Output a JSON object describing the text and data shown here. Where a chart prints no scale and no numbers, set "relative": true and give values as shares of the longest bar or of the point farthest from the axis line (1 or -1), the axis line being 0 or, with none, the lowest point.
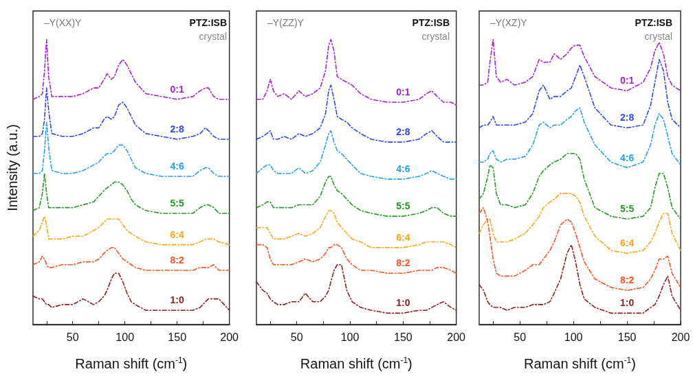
{
  "chart_data": [
    {
      "type": "line",
      "relative": true,
      "xlabel": "Raman shift (cm$^{-1}$)",
      "ylabel": "Intensity (a.u.)",
      "annotations": [
        "–Y(XX)Y",
        "PTZ:ISB",
        "crystal"
      ],
      "xlim": [
        12,
        200
      ],
      "xticks": [
        {
          "value": 25,
          "label": null
        },
        50,
        {
          "value": 75,
          "label": null
        },
        100,
        {
          "value": 125,
          "label": null
        },
        150,
        {
          "value": 175,
          "label": null
        },
        200
      ],
      "tick_labels": "x",
      "grid": false,
      "legend": false,
      "marker": "none",
      "line_style": "dashed",
      "x": [
        12,
        18,
        21,
        23,
        25,
        27,
        30,
        40,
        50,
        60,
        70,
        75,
        80,
        83,
        87,
        90,
        94,
        98,
        102,
        106,
        110,
        120,
        135,
        150,
        165,
        172,
        177,
        180,
        185,
        190,
        200
      ],
      "series": [
        {
          "name": "0:1",
          "color": "#a51fd8",
          "values": [
            0.79,
            0.8,
            0.81,
            0.89,
            1.0,
            0.87,
            0.8,
            0.8,
            0.8,
            0.81,
            0.83,
            0.83,
            0.86,
            0.88,
            0.86,
            0.87,
            0.91,
            0.93,
            0.91,
            0.88,
            0.85,
            0.81,
            0.8,
            0.79,
            0.8,
            0.82,
            0.83,
            0.83,
            0.8,
            0.79,
            0.79
          ]
        },
        {
          "name": "2:8",
          "color": "#2b45f0",
          "values": [
            0.66,
            0.66,
            0.67,
            0.72,
            0.83,
            0.75,
            0.67,
            0.66,
            0.66,
            0.67,
            0.69,
            0.69,
            0.72,
            0.73,
            0.72,
            0.73,
            0.77,
            0.78,
            0.76,
            0.73,
            0.7,
            0.67,
            0.66,
            0.65,
            0.66,
            0.67,
            0.69,
            0.68,
            0.66,
            0.65,
            0.65
          ]
        },
        {
          "name": "4:6",
          "color": "#1e9ff2",
          "values": [
            0.53,
            0.53,
            0.54,
            0.61,
            0.71,
            0.62,
            0.54,
            0.53,
            0.53,
            0.54,
            0.56,
            0.57,
            0.59,
            0.6,
            0.6,
            0.61,
            0.63,
            0.63,
            0.61,
            0.58,
            0.55,
            0.53,
            0.52,
            0.52,
            0.52,
            0.54,
            0.55,
            0.55,
            0.53,
            0.52,
            0.52
          ]
        },
        {
          "name": "5:5",
          "color": "#1f9a1f",
          "values": [
            0.4,
            0.41,
            0.46,
            0.53,
            0.46,
            0.41,
            0.41,
            0.41,
            0.41,
            0.42,
            0.43,
            0.45,
            0.47,
            0.48,
            0.49,
            0.5,
            0.5,
            0.49,
            0.47,
            0.44,
            0.42,
            0.4,
            0.39,
            0.39,
            0.39,
            0.41,
            0.42,
            0.42,
            0.41,
            0.39,
            0.39
          ]
        },
        {
          "name": "6:4",
          "color": "#ffa214",
          "values": [
            0.31,
            0.33,
            0.36,
            0.38,
            0.35,
            0.3,
            0.3,
            0.3,
            0.31,
            0.31,
            0.33,
            0.34,
            0.36,
            0.37,
            0.37,
            0.37,
            0.37,
            0.35,
            0.33,
            0.32,
            0.31,
            0.29,
            0.28,
            0.28,
            0.28,
            0.29,
            0.3,
            0.3,
            0.3,
            0.29,
            0.28
          ]
        },
        {
          "name": "8:2",
          "color": "#ff4f1e",
          "values": [
            0.21,
            0.22,
            0.24,
            0.23,
            0.21,
            0.2,
            0.2,
            0.21,
            0.21,
            0.22,
            0.22,
            0.23,
            0.25,
            0.26,
            0.27,
            0.27,
            0.25,
            0.23,
            0.22,
            0.21,
            0.2,
            0.19,
            0.19,
            0.19,
            0.19,
            0.2,
            0.2,
            0.2,
            0.21,
            0.19,
            0.19
          ]
        },
        {
          "name": "1:0",
          "color": "#8b1c1c",
          "values": [
            0.1,
            0.09,
            0.09,
            0.08,
            0.07,
            0.07,
            0.06,
            0.07,
            0.07,
            0.09,
            0.07,
            0.08,
            0.1,
            0.12,
            0.16,
            0.18,
            0.18,
            0.15,
            0.11,
            0.08,
            0.07,
            0.05,
            0.05,
            0.05,
            0.05,
            0.06,
            0.08,
            0.09,
            0.09,
            0.09,
            0.05
          ]
        }
      ]
    },
    {
      "type": "line",
      "relative": true,
      "xlabel": "Raman shift (cm$^{-1}$)",
      "annotations": [
        "–Y(ZZ)Y",
        "PTZ:ISB",
        "crystal"
      ],
      "xlim": [
        12,
        200
      ],
      "xticks": [
        {
          "value": 25,
          "label": null
        },
        50,
        {
          "value": 75,
          "label": null
        },
        100,
        {
          "value": 125,
          "label": null
        },
        150,
        {
          "value": 175,
          "label": null
        },
        200
      ],
      "tick_labels": "x",
      "grid": false,
      "legend": false,
      "marker": "none",
      "line_style": "dashed",
      "x": [
        12,
        18,
        22,
        25,
        28,
        32,
        38,
        45,
        52,
        58,
        65,
        72,
        77,
        80,
        82,
        85,
        88,
        92,
        97,
        102,
        110,
        120,
        135,
        150,
        165,
        172,
        177,
        182,
        188,
        195,
        200
      ],
      "series": [
        {
          "name": "0:1",
          "color": "#a51fd8",
          "values": [
            0.79,
            0.79,
            0.82,
            0.86,
            0.82,
            0.8,
            0.81,
            0.79,
            0.82,
            0.8,
            0.81,
            0.83,
            0.89,
            0.98,
            1.0,
            0.96,
            0.87,
            0.86,
            0.85,
            0.84,
            0.81,
            0.79,
            0.78,
            0.78,
            0.79,
            0.81,
            0.82,
            0.8,
            0.78,
            0.78,
            0.77
          ]
        },
        {
          "name": "2:8",
          "color": "#2b45f0",
          "values": [
            0.65,
            0.66,
            0.67,
            0.68,
            0.65,
            0.65,
            0.66,
            0.65,
            0.67,
            0.66,
            0.67,
            0.69,
            0.74,
            0.82,
            0.84,
            0.79,
            0.73,
            0.72,
            0.71,
            0.69,
            0.67,
            0.65,
            0.64,
            0.64,
            0.65,
            0.67,
            0.68,
            0.66,
            0.64,
            0.64,
            0.64
          ]
        },
        {
          "name": "4:6",
          "color": "#1e9ff2",
          "values": [
            0.53,
            0.55,
            0.56,
            0.56,
            0.54,
            0.53,
            0.53,
            0.53,
            0.55,
            0.53,
            0.54,
            0.57,
            0.63,
            0.67,
            0.68,
            0.64,
            0.61,
            0.6,
            0.58,
            0.56,
            0.53,
            0.52,
            0.51,
            0.51,
            0.52,
            0.53,
            0.54,
            0.53,
            0.52,
            0.51,
            0.51
          ]
        },
        {
          "name": "5:5",
          "color": "#1f9a1f",
          "values": [
            0.41,
            0.42,
            0.43,
            0.43,
            0.41,
            0.41,
            0.41,
            0.41,
            0.42,
            0.42,
            0.42,
            0.45,
            0.5,
            0.52,
            0.52,
            0.49,
            0.47,
            0.46,
            0.44,
            0.42,
            0.4,
            0.39,
            0.38,
            0.38,
            0.39,
            0.4,
            0.41,
            0.41,
            0.39,
            0.38,
            0.38
          ]
        },
        {
          "name": "6:4",
          "color": "#ffa214",
          "values": [
            0.34,
            0.34,
            0.34,
            0.32,
            0.3,
            0.3,
            0.3,
            0.31,
            0.32,
            0.31,
            0.32,
            0.34,
            0.38,
            0.4,
            0.4,
            0.39,
            0.36,
            0.34,
            0.32,
            0.3,
            0.29,
            0.27,
            0.27,
            0.27,
            0.28,
            0.29,
            0.29,
            0.29,
            0.29,
            0.28,
            0.27
          ]
        },
        {
          "name": "8:2",
          "color": "#ff4f1e",
          "values": [
            0.28,
            0.28,
            0.27,
            0.23,
            0.21,
            0.21,
            0.21,
            0.21,
            0.22,
            0.23,
            0.22,
            0.23,
            0.25,
            0.27,
            0.27,
            0.28,
            0.28,
            0.27,
            0.23,
            0.21,
            0.19,
            0.19,
            0.18,
            0.18,
            0.19,
            0.19,
            0.19,
            0.2,
            0.2,
            0.19,
            0.18
          ]
        },
        {
          "name": "1:0",
          "color": "#8b1c1c",
          "values": [
            0.15,
            0.12,
            0.11,
            0.09,
            0.08,
            0.07,
            0.07,
            0.08,
            0.08,
            0.11,
            0.08,
            0.08,
            0.1,
            0.12,
            0.15,
            0.19,
            0.21,
            0.21,
            0.12,
            0.08,
            0.06,
            0.05,
            0.04,
            0.04,
            0.05,
            0.05,
            0.06,
            0.07,
            0.08,
            0.06,
            0.05
          ]
        }
      ]
    },
    {
      "type": "line",
      "relative": true,
      "xlabel": "Raman shift (cm$^{-1}$)",
      "annotations": [
        "–Y(XZ)Y",
        "PTZ:ISB",
        "crystal"
      ],
      "xlim": [
        12,
        200
      ],
      "xticks": [
        {
          "value": 25,
          "label": null
        },
        50,
        {
          "value": 75,
          "label": null
        },
        100,
        {
          "value": 125,
          "label": null
        },
        150,
        {
          "value": 175,
          "label": null
        },
        200
      ],
      "tick_labels": "x",
      "grid": false,
      "legend": false,
      "marker": "none",
      "line_style": "dashed",
      "x": [
        12,
        16,
        20,
        22,
        25,
        28,
        32,
        38,
        45,
        55,
        62,
        68,
        72,
        78,
        82,
        88,
        94,
        98,
        102,
        106,
        110,
        120,
        135,
        150,
        165,
        172,
        176,
        180,
        184,
        188,
        192,
        200
      ],
      "series": [
        {
          "name": "0:1",
          "color": "#a51fd8",
          "values": [
            0.84,
            0.84,
            0.85,
            0.92,
            1.0,
            0.87,
            0.85,
            0.86,
            0.84,
            0.85,
            0.87,
            0.93,
            0.92,
            0.92,
            0.95,
            0.93,
            0.95,
            0.97,
            0.98,
            0.98,
            0.94,
            0.87,
            0.83,
            0.82,
            0.85,
            0.9,
            0.96,
            0.99,
            0.95,
            0.87,
            0.84,
            0.82
          ]
        },
        {
          "name": "2:8",
          "color": "#2b45f0",
          "values": [
            0.69,
            0.7,
            0.7,
            0.71,
            0.73,
            0.7,
            0.7,
            0.7,
            0.7,
            0.71,
            0.74,
            0.82,
            0.84,
            0.79,
            0.8,
            0.8,
            0.82,
            0.83,
            0.87,
            0.91,
            0.87,
            0.76,
            0.7,
            0.69,
            0.7,
            0.77,
            0.85,
            0.93,
            0.89,
            0.78,
            0.72,
            0.69
          ]
        },
        {
          "name": "4:6",
          "color": "#1e9ff2",
          "values": [
            0.57,
            0.57,
            0.58,
            0.6,
            0.61,
            0.58,
            0.57,
            0.58,
            0.58,
            0.59,
            0.63,
            0.7,
            0.71,
            0.69,
            0.7,
            0.7,
            0.72,
            0.73,
            0.75,
            0.76,
            0.71,
            0.63,
            0.57,
            0.55,
            0.57,
            0.63,
            0.7,
            0.74,
            0.72,
            0.66,
            0.6,
            0.56
          ]
        },
        {
          "name": "5:5",
          "color": "#1f9a1f",
          "values": [
            0.44,
            0.46,
            0.52,
            0.56,
            0.55,
            0.46,
            0.42,
            0.42,
            0.41,
            0.42,
            0.46,
            0.52,
            0.54,
            0.56,
            0.57,
            0.58,
            0.6,
            0.6,
            0.6,
            0.58,
            0.51,
            0.41,
            0.38,
            0.37,
            0.38,
            0.41,
            0.48,
            0.53,
            0.53,
            0.48,
            0.41,
            0.37
          ]
        },
        {
          "name": "6:4",
          "color": "#ffa214",
          "values": [
            0.32,
            0.35,
            0.37,
            0.37,
            0.32,
            0.29,
            0.29,
            0.29,
            0.3,
            0.32,
            0.35,
            0.38,
            0.41,
            0.43,
            0.44,
            0.46,
            0.46,
            0.46,
            0.45,
            0.43,
            0.38,
            0.31,
            0.26,
            0.25,
            0.26,
            0.29,
            0.32,
            0.36,
            0.39,
            0.39,
            0.32,
            0.26
          ]
        },
        {
          "name": "8:2",
          "color": "#ff4f1e",
          "values": [
            0.39,
            0.41,
            0.36,
            0.31,
            0.23,
            0.18,
            0.17,
            0.17,
            0.17,
            0.19,
            0.21,
            0.21,
            0.23,
            0.26,
            0.29,
            0.35,
            0.37,
            0.36,
            0.32,
            0.27,
            0.22,
            0.16,
            0.13,
            0.12,
            0.13,
            0.16,
            0.19,
            0.23,
            0.23,
            0.24,
            0.18,
            0.13
          ]
        },
        {
          "name": "1:0",
          "color": "#8b1c1c",
          "values": [
            0.14,
            0.12,
            0.08,
            0.07,
            0.06,
            0.06,
            0.06,
            0.05,
            0.06,
            0.06,
            0.07,
            0.07,
            0.07,
            0.08,
            0.11,
            0.16,
            0.25,
            0.28,
            0.22,
            0.14,
            0.09,
            0.06,
            0.04,
            0.04,
            0.04,
            0.06,
            0.07,
            0.1,
            0.14,
            0.17,
            0.1,
            0.05
          ]
        }
      ]
    }
  ]
}
